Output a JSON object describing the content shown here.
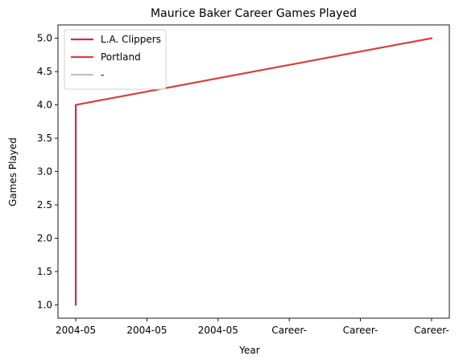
{
  "chart_data": {
    "type": "line",
    "title": "Maurice Baker Career Games Played",
    "xlabel": "Year",
    "ylabel": "Games Played",
    "x_tick_labels": [
      "2004-05",
      "2004-05",
      "2004-05",
      "Career-",
      "Career-",
      "Career-"
    ],
    "xlim": [
      -0.25,
      5.25
    ],
    "ylim": [
      0.8,
      5.2
    ],
    "y_ticks": [
      "1.0",
      "1.5",
      "2.0",
      "2.5",
      "3.0",
      "3.5",
      "4.0",
      "4.5",
      "5.0"
    ],
    "grid": false,
    "legend_position": "top-left",
    "series": [
      {
        "name": "L.A. Clippers",
        "color": "#d6264f",
        "points": [
          [
            0,
            1.0
          ],
          [
            0,
            4.0
          ]
        ]
      },
      {
        "name": "Portland",
        "color": "#d94040",
        "points": [
          [
            0,
            4.0
          ],
          [
            5,
            5.0
          ]
        ]
      },
      {
        "name": "-",
        "color": "#c0c0c0",
        "points": []
      }
    ]
  }
}
